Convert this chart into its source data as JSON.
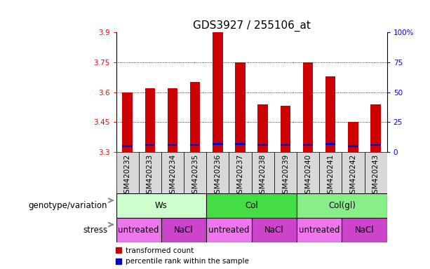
{
  "title": "GDS3927 / 255106_at",
  "samples": [
    "GSM420232",
    "GSM420233",
    "GSM420234",
    "GSM420235",
    "GSM420236",
    "GSM420237",
    "GSM420238",
    "GSM420239",
    "GSM420240",
    "GSM420241",
    "GSM420242",
    "GSM420243"
  ],
  "red_values": [
    3.6,
    3.62,
    3.62,
    3.65,
    3.9,
    3.75,
    3.54,
    3.53,
    3.75,
    3.68,
    3.45,
    3.54
  ],
  "blue_values": [
    3.325,
    3.33,
    3.33,
    3.33,
    3.335,
    3.335,
    3.33,
    3.33,
    3.33,
    3.335,
    3.325,
    3.33
  ],
  "blue_heights": [
    0.01,
    0.01,
    0.01,
    0.01,
    0.012,
    0.012,
    0.01,
    0.01,
    0.01,
    0.01,
    0.01,
    0.01
  ],
  "ymin": 3.3,
  "ymax": 3.9,
  "yticks": [
    3.3,
    3.45,
    3.6,
    3.75,
    3.9
  ],
  "ytick_labels": [
    "3.3",
    "3.45",
    "3.6",
    "3.75",
    "3.9"
  ],
  "right_yticks": [
    0,
    25,
    50,
    75,
    100
  ],
  "right_ytick_labels": [
    "0",
    "25",
    "50",
    "75",
    "100%"
  ],
  "grid_lines": [
    3.45,
    3.6,
    3.75
  ],
  "genotype_groups": [
    {
      "label": "Ws",
      "start": 0,
      "end": 4,
      "color": "#ccffcc"
    },
    {
      "label": "Col",
      "start": 4,
      "end": 8,
      "color": "#44dd44"
    },
    {
      "label": "Col(gl)",
      "start": 8,
      "end": 12,
      "color": "#88ee88"
    }
  ],
  "stress_groups": [
    {
      "label": "untreated",
      "start": 0,
      "end": 2,
      "color": "#ee77ee"
    },
    {
      "label": "NaCl",
      "start": 2,
      "end": 4,
      "color": "#cc44cc"
    },
    {
      "label": "untreated",
      "start": 4,
      "end": 6,
      "color": "#ee77ee"
    },
    {
      "label": "NaCl",
      "start": 6,
      "end": 8,
      "color": "#cc44cc"
    },
    {
      "label": "untreated",
      "start": 8,
      "end": 10,
      "color": "#ee77ee"
    },
    {
      "label": "NaCl",
      "start": 10,
      "end": 12,
      "color": "#cc44cc"
    }
  ],
  "bar_width": 0.45,
  "bar_color_red": "#cc0000",
  "bar_color_blue": "#0000cc",
  "legend_red": "transformed count",
  "legend_blue": "percentile rank within the sample",
  "genotype_label": "genotype/variation",
  "stress_label": "stress",
  "title_fontsize": 11,
  "tick_fontsize": 7.5,
  "label_fontsize": 8.5,
  "row_label_fontsize": 8.5
}
